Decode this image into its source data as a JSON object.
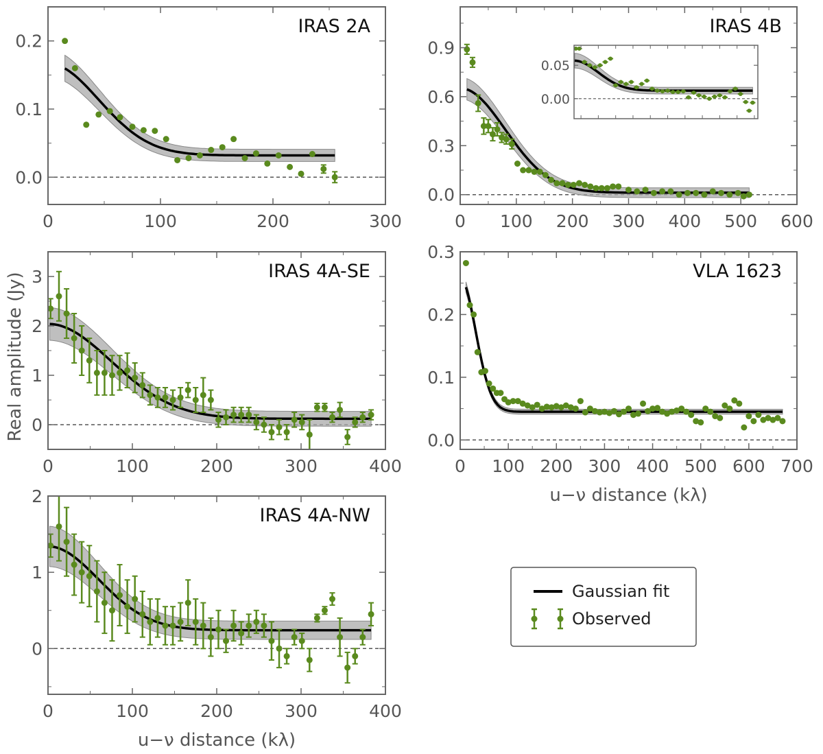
{
  "chart_data": [
    {
      "id": "iras2a",
      "type": "scatter",
      "title": "IRAS 2A",
      "xlabel": "",
      "ylabel": "",
      "xlim": [
        0,
        300
      ],
      "ylim": [
        -0.04,
        0.25
      ],
      "xticks": [
        0,
        100,
        200,
        300
      ],
      "xtick_labels": [
        "0",
        "100",
        "200",
        "300"
      ],
      "yticks": [
        0.0,
        0.1,
        0.2
      ],
      "ytick_labels": [
        "0.0",
        "0.1",
        "0.2"
      ],
      "fit": {
        "amp": 0.135,
        "sigma": 45,
        "offset": 0.032,
        "band": 0.009,
        "xmin": 15,
        "xmax": 255
      },
      "series": [
        {
          "name": "Observed",
          "x": [
            15,
            24,
            34,
            45,
            55,
            64,
            75,
            85,
            95,
            105,
            115,
            125,
            135,
            145,
            155,
            165,
            175,
            185,
            195,
            205,
            215,
            225,
            235,
            245,
            255
          ],
          "y": [
            0.2,
            0.16,
            0.077,
            0.092,
            0.097,
            0.088,
            0.074,
            0.069,
            0.068,
            0.056,
            0.025,
            0.028,
            0.032,
            0.04,
            0.044,
            0.056,
            0.028,
            0.035,
            0.02,
            0.032,
            0.015,
            0.005,
            0.034,
            0.012,
            0.0
          ],
          "err": [
            0.003,
            0.003,
            0.004,
            0.004,
            0.004,
            0.004,
            0.004,
            0.004,
            0.004,
            0.004,
            0.005,
            0.005,
            0.005,
            0.005,
            0.005,
            0.005,
            0.005,
            0.005,
            0.005,
            0.005,
            0.005,
            0.005,
            0.005,
            0.006,
            0.008
          ]
        }
      ]
    },
    {
      "id": "iras4b",
      "type": "scatter",
      "title": "IRAS 4B",
      "xlabel": "",
      "ylabel": "",
      "xlim": [
        0,
        600
      ],
      "ylim": [
        -0.06,
        1.15
      ],
      "xticks": [
        0,
        100,
        200,
        300,
        400,
        500,
        600
      ],
      "xtick_labels": [
        "0",
        "100",
        "200",
        "300",
        "400",
        "500",
        "600"
      ],
      "yticks": [
        0.0,
        0.3,
        0.6,
        0.9
      ],
      "ytick_labels": [
        "0.0",
        "0.3",
        "0.6",
        "0.9"
      ],
      "fit": {
        "amp": 0.64,
        "sigma": 80,
        "offset": 0.012,
        "band": 0.03,
        "xmin": 12,
        "xmax": 515
      },
      "series": [
        {
          "name": "Observed",
          "x": [
            12,
            22,
            32,
            42,
            50,
            58,
            66,
            74,
            82,
            92,
            102,
            112,
            122,
            132,
            142,
            152,
            162,
            172,
            182,
            192,
            202,
            212,
            222,
            232,
            242,
            252,
            262,
            272,
            282,
            300,
            315,
            330,
            345,
            360,
            375,
            390,
            405,
            420,
            435,
            450,
            465,
            480,
            495,
            505,
            515
          ],
          "y": [
            0.89,
            0.81,
            0.56,
            0.42,
            0.42,
            0.37,
            0.4,
            0.35,
            0.34,
            0.31,
            0.19,
            0.15,
            0.15,
            0.14,
            0.14,
            0.12,
            0.09,
            0.07,
            0.07,
            0.06,
            0.06,
            0.07,
            0.06,
            0.05,
            0.04,
            0.04,
            0.04,
            0.05,
            0.05,
            0.03,
            0.02,
            0.03,
            0.01,
            0.02,
            0.02,
            0.0,
            0.01,
            0.01,
            0.0,
            0.02,
            0.01,
            0.0,
            0.01,
            -0.01,
            0.0
          ],
          "err": [
            0.03,
            0.03,
            0.05,
            0.05,
            0.04,
            0.04,
            0.04,
            0.03,
            0.03,
            0.03,
            0.02,
            0.02,
            0.02,
            0.02,
            0.02,
            0.02,
            0.02,
            0.02,
            0.02,
            0.02,
            0.02,
            0.02,
            0.02,
            0.02,
            0.02,
            0.02,
            0.02,
            0.02,
            0.02,
            0.02,
            0.02,
            0.02,
            0.02,
            0.02,
            0.02,
            0.02,
            0.02,
            0.02,
            0.02,
            0.02,
            0.02,
            0.02,
            0.02,
            0.02,
            0.02
          ]
        }
      ],
      "inset": {
        "xlim": [
          0,
          530
        ],
        "ylim": [
          -0.03,
          0.08
        ],
        "yticks": [
          0.0,
          0.05
        ],
        "ytick_labels": [
          "0.00",
          "0.05"
        ],
        "fit": {
          "amp": 0.045,
          "sigma": 70,
          "offset": 0.012,
          "band": 0.005,
          "xmin": 2,
          "xmax": 515
        },
        "x": [
          5,
          15,
          30,
          45,
          60,
          75,
          90,
          105,
          120,
          135,
          150,
          165,
          180,
          195,
          210,
          225,
          240,
          255,
          270,
          285,
          300,
          315,
          330,
          345,
          360,
          375,
          390,
          405,
          420,
          435,
          450,
          465,
          480,
          495,
          505,
          515
        ],
        "y": [
          0.075,
          0.075,
          0.055,
          0.05,
          0.047,
          0.05,
          0.055,
          0.06,
          0.02,
          0.025,
          0.022,
          0.025,
          0.017,
          0.022,
          0.027,
          0.015,
          0.012,
          0.011,
          0.012,
          0.01,
          0.01,
          0.011,
          0.002,
          0.009,
          0.005,
          0.003,
          0.0,
          0.003,
          0.005,
          0.002,
          0.011,
          0.015,
          0.007,
          -0.005,
          -0.018,
          -0.006
        ],
        "err": [
          0.003,
          0.003,
          0.003,
          0.003,
          0.003,
          0.003,
          0.003,
          0.003,
          0.003,
          0.003,
          0.003,
          0.003,
          0.003,
          0.003,
          0.003,
          0.003,
          0.003,
          0.003,
          0.003,
          0.003,
          0.003,
          0.003,
          0.003,
          0.003,
          0.003,
          0.003,
          0.003,
          0.003,
          0.003,
          0.003,
          0.003,
          0.003,
          0.003,
          0.003,
          0.003,
          0.003
        ]
      }
    },
    {
      "id": "iras4ase",
      "type": "scatter",
      "title": "IRAS 4A-SE",
      "xlabel": "",
      "ylabel": "",
      "xlim": [
        0,
        400
      ],
      "ylim": [
        -0.5,
        3.5
      ],
      "xticks": [
        0,
        100,
        200,
        300,
        400
      ],
      "xtick_labels": [
        "0",
        "100",
        "200",
        "300",
        "400"
      ],
      "yticks": [
        0,
        1,
        2,
        3
      ],
      "ytick_labels": [
        "0",
        "1",
        "2",
        "3"
      ],
      "fit": {
        "amp": 1.92,
        "sigma": 75,
        "offset": 0.12,
        "band": 0.15,
        "xmin": 2,
        "xmax": 383
      },
      "series": [
        {
          "name": "Observed",
          "x": [
            3,
            13,
            22,
            31,
            40,
            49,
            58,
            67,
            76,
            85,
            94,
            103,
            112,
            121,
            130,
            139,
            148,
            157,
            166,
            175,
            184,
            193,
            202,
            211,
            220,
            229,
            238,
            247,
            256,
            265,
            274,
            283,
            292,
            301,
            310,
            319,
            328,
            337,
            346,
            355,
            364,
            373,
            383
          ],
          "y": [
            2.35,
            2.6,
            2.25,
            1.75,
            1.5,
            1.3,
            1.05,
            1.05,
            1.0,
            1.05,
            1.1,
            0.95,
            0.8,
            0.6,
            0.55,
            0.55,
            0.5,
            0.55,
            0.7,
            0.5,
            0.6,
            0.5,
            0.1,
            0.15,
            0.2,
            0.2,
            0.2,
            0.05,
            0.0,
            -0.15,
            -0.05,
            -0.15,
            0.1,
            0.05,
            -0.2,
            0.35,
            0.35,
            0.15,
            0.3,
            -0.25,
            0.05,
            0.15,
            0.2
          ],
          "err": [
            0.2,
            0.5,
            0.5,
            0.5,
            0.5,
            0.45,
            0.45,
            0.45,
            0.4,
            0.35,
            0.35,
            0.3,
            0.25,
            0.2,
            0.2,
            0.2,
            0.2,
            0.2,
            0.15,
            0.25,
            0.35,
            0.2,
            0.15,
            0.15,
            0.15,
            0.15,
            0.15,
            0.15,
            0.15,
            0.15,
            0.15,
            0.15,
            0.15,
            0.15,
            0.3,
            0.08,
            0.08,
            0.1,
            0.15,
            0.15,
            0.1,
            0.1,
            0.1
          ]
        }
      ]
    },
    {
      "id": "vla1623",
      "type": "scatter",
      "title": "VLA 1623",
      "xlabel": "u−ν distance (kλ)",
      "ylabel": "",
      "xlim": [
        0,
        700
      ],
      "ylim": [
        -0.015,
        0.3
      ],
      "xticks": [
        0,
        100,
        200,
        300,
        400,
        500,
        600,
        700
      ],
      "xtick_labels": [
        "0",
        "100",
        "200",
        "300",
        "400",
        "500",
        "600",
        "700"
      ],
      "yticks": [
        0.0,
        0.1,
        0.2,
        0.3
      ],
      "ytick_labels": [
        "0.0",
        "0.1",
        "0.2",
        "0.3"
      ],
      "fit": {
        "amp": 0.213,
        "sigma": 32,
        "offset": 0.045,
        "band": 0.004,
        "xmin": 12,
        "xmax": 670
      },
      "series": [
        {
          "name": "Observed",
          "x": [
            12,
            20,
            28,
            36,
            44,
            52,
            60,
            68,
            76,
            84,
            92,
            100,
            110,
            120,
            130,
            140,
            150,
            160,
            170,
            180,
            190,
            200,
            210,
            220,
            230,
            240,
            250,
            260,
            270,
            280,
            290,
            300,
            310,
            320,
            330,
            340,
            350,
            360,
            370,
            380,
            390,
            400,
            410,
            420,
            430,
            440,
            450,
            460,
            470,
            480,
            490,
            500,
            510,
            520,
            530,
            540,
            550,
            560,
            570,
            580,
            590,
            600,
            610,
            620,
            630,
            640,
            650,
            660,
            670
          ],
          "y": [
            0.282,
            0.215,
            0.2,
            0.14,
            0.108,
            0.11,
            0.09,
            0.082,
            0.075,
            0.075,
            0.065,
            0.06,
            0.062,
            0.062,
            0.058,
            0.055,
            0.052,
            0.056,
            0.05,
            0.053,
            0.052,
            0.054,
            0.052,
            0.055,
            0.052,
            0.05,
            0.062,
            0.044,
            0.05,
            0.046,
            0.044,
            0.045,
            0.043,
            0.046,
            0.041,
            0.045,
            0.05,
            0.04,
            0.042,
            0.058,
            0.046,
            0.05,
            0.051,
            0.045,
            0.042,
            0.045,
            0.047,
            0.05,
            0.045,
            0.04,
            0.03,
            0.028,
            0.05,
            0.045,
            0.038,
            0.035,
            0.055,
            0.05,
            0.063,
            0.058,
            0.02,
            0.038,
            0.03,
            0.04,
            0.032,
            0.035,
            0.032,
            0.035,
            0.03
          ],
          "err": [
            0.002,
            0.002,
            0.002,
            0.002,
            0.002,
            0.002,
            0.002,
            0.002,
            0.002,
            0.002,
            0.002,
            0.002,
            0.002,
            0.002,
            0.002,
            0.002,
            0.002,
            0.002,
            0.002,
            0.002,
            0.002,
            0.002,
            0.002,
            0.002,
            0.002,
            0.002,
            0.002,
            0.002,
            0.002,
            0.002,
            0.002,
            0.002,
            0.002,
            0.002,
            0.002,
            0.002,
            0.002,
            0.002,
            0.002,
            0.002,
            0.002,
            0.002,
            0.002,
            0.002,
            0.002,
            0.002,
            0.002,
            0.002,
            0.002,
            0.002,
            0.002,
            0.002,
            0.002,
            0.002,
            0.002,
            0.002,
            0.002,
            0.002,
            0.002,
            0.002,
            0.002,
            0.002,
            0.002,
            0.002,
            0.002,
            0.002,
            0.002,
            0.002,
            0.002
          ]
        }
      ]
    },
    {
      "id": "iras4anw",
      "type": "scatter",
      "title": "IRAS 4A-NW",
      "xlabel": "u−ν distance (kλ)",
      "ylabel": "",
      "xlim": [
        0,
        400
      ],
      "ylim": [
        -0.6,
        2.0
      ],
      "xticks": [
        0,
        100,
        200,
        300,
        400
      ],
      "xtick_labels": [
        "0",
        "100",
        "200",
        "300",
        "400"
      ],
      "yticks": [
        0,
        1,
        2
      ],
      "ytick_labels": [
        "0",
        "1",
        "2"
      ],
      "fit": {
        "amp": 1.1,
        "sigma": 60,
        "offset": 0.24,
        "band": 0.12,
        "xmin": 2,
        "xmax": 383
      },
      "series": [
        {
          "name": "Observed",
          "x": [
            3,
            13,
            22,
            31,
            40,
            49,
            58,
            67,
            76,
            85,
            94,
            103,
            112,
            121,
            130,
            139,
            148,
            157,
            166,
            175,
            184,
            193,
            202,
            211,
            220,
            229,
            238,
            247,
            256,
            265,
            274,
            283,
            292,
            301,
            310,
            319,
            328,
            337,
            346,
            355,
            364,
            373,
            383
          ],
          "y": [
            1.35,
            1.6,
            1.4,
            1.1,
            1.0,
            0.95,
            0.75,
            0.6,
            0.5,
            0.7,
            0.55,
            0.65,
            0.45,
            0.35,
            0.4,
            0.3,
            0.3,
            0.35,
            0.6,
            0.35,
            0.3,
            0.15,
            0.25,
            0.1,
            0.3,
            0.2,
            0.3,
            0.35,
            0.3,
            0.1,
            0.0,
            -0.1,
            0.15,
            0.1,
            -0.15,
            0.4,
            0.5,
            0.65,
            0.15,
            -0.25,
            -0.1,
            0.15,
            0.45
          ],
          "err": [
            0.15,
            0.45,
            0.45,
            0.4,
            0.4,
            0.4,
            0.4,
            0.4,
            0.4,
            0.4,
            0.35,
            0.3,
            0.3,
            0.3,
            0.25,
            0.25,
            0.25,
            0.25,
            0.3,
            0.3,
            0.3,
            0.25,
            0.25,
            0.15,
            0.2,
            0.15,
            0.15,
            0.15,
            0.15,
            0.25,
            0.25,
            0.1,
            0.1,
            0.1,
            0.15,
            0.05,
            0.05,
            0.08,
            0.25,
            0.2,
            0.1,
            0.1,
            0.15
          ]
        }
      ]
    }
  ],
  "figure": {
    "ylabel": "Real amplitude (Jy)",
    "colors": {
      "observed": "#5a8a1e",
      "fit": "#000000",
      "band": "#aaaaaa",
      "zero": "#555555",
      "frame": "#666666"
    },
    "legend": {
      "fit_label": "Gaussian fit",
      "observed_label": "Observed"
    }
  }
}
